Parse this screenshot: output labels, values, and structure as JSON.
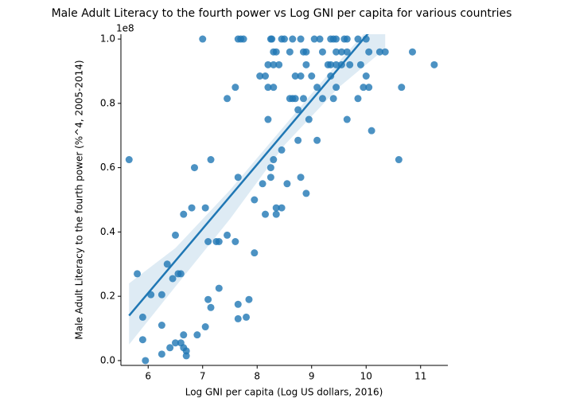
{
  "chart_data": {
    "type": "scatter",
    "title": "Male Adult Literacy to the fourth power vs Log GNI per capita for various countries",
    "x_label": "Log GNI per capita (Log US dollars, 2016)",
    "y_label": "Male Adult Literacy to the fourth power (%^4, 2005-2014)",
    "y_offset_label": "1e8",
    "xlim": [
      5.5,
      11.5
    ],
    "ylim": [
      -0.015,
      1.015
    ],
    "xticks": [
      6,
      7,
      8,
      9,
      10,
      11
    ],
    "yticks": [
      {
        "value": 0,
        "label": "0.0"
      },
      {
        "value": 0.2,
        "label": "0.2"
      },
      {
        "value": 0.4,
        "label": "0.4"
      },
      {
        "value": 0.6,
        "label": "0.6"
      },
      {
        "value": 0.8,
        "label": "0.8"
      },
      {
        "value": 1.0,
        "label": "1.0"
      }
    ],
    "color": "#1f77b4",
    "x": [
      7.0,
      7.65,
      7.7,
      7.75,
      8.25,
      8.27,
      8.45,
      8.5,
      8.65,
      8.8,
      9.05,
      9.15,
      9.35,
      9.4,
      9.45,
      9.6,
      9.65,
      9.85,
      10.0,
      8.3,
      8.35,
      8.6,
      8.85,
      8.9,
      9.2,
      9.45,
      9.55,
      9.65,
      10.05,
      10.25,
      10.35,
      10.85,
      8.2,
      8.3,
      8.4,
      9.3,
      9.35,
      9.45,
      9.55,
      9.7,
      9.9,
      11.25,
      8.9,
      8.05,
      8.15,
      8.7,
      8.8,
      9.0,
      9.35,
      10.0,
      7.6,
      8.2,
      8.3,
      9.1,
      9.45,
      9.95,
      10.05,
      10.65,
      7.45,
      8.6,
      8.65,
      8.7,
      8.85,
      9.2,
      9.4,
      9.85,
      8.75,
      8.2,
      8.95,
      9.65,
      10.1,
      8.75,
      9.1,
      8.45,
      5.65,
      7.15,
      8.3,
      10.6,
      6.85,
      8.25,
      7.65,
      8.25,
      8.8,
      8.1,
      8.55,
      8.9,
      7.95,
      6.8,
      7.05,
      8.35,
      8.45,
      6.65,
      8.15,
      8.35,
      6.5,
      7.45,
      7.1,
      7.25,
      7.3,
      7.6,
      7.95,
      6.35,
      5.8,
      6.55,
      6.6,
      6.45,
      7.3,
      6.05,
      6.25,
      7.1,
      7.85,
      7.65,
      7.15,
      5.9,
      7.8,
      7.65,
      6.25,
      7.05,
      6.65,
      6.9,
      5.9,
      6.5,
      6.6,
      6.4,
      6.65,
      6.7,
      6.25,
      6.7,
      5.95
    ],
    "values": [
      1.0,
      1.0,
      1.0,
      1.0,
      1.0,
      1.0,
      1.0,
      1.0,
      1.0,
      1.0,
      1.0,
      1.0,
      1.0,
      1.0,
      1.0,
      1.0,
      1.0,
      1.0,
      1.0,
      0.96,
      0.96,
      0.96,
      0.96,
      0.96,
      0.96,
      0.96,
      0.96,
      0.96,
      0.96,
      0.96,
      0.96,
      0.96,
      0.92,
      0.92,
      0.92,
      0.92,
      0.92,
      0.92,
      0.92,
      0.92,
      0.92,
      0.92,
      0.92,
      0.885,
      0.885,
      0.885,
      0.885,
      0.885,
      0.885,
      0.885,
      0.85,
      0.85,
      0.85,
      0.85,
      0.85,
      0.85,
      0.85,
      0.85,
      0.815,
      0.815,
      0.815,
      0.815,
      0.815,
      0.815,
      0.815,
      0.815,
      0.78,
      0.75,
      0.75,
      0.75,
      0.715,
      0.685,
      0.685,
      0.655,
      0.625,
      0.625,
      0.625,
      0.625,
      0.6,
      0.6,
      0.57,
      0.57,
      0.57,
      0.55,
      0.55,
      0.52,
      0.5,
      0.475,
      0.475,
      0.475,
      0.475,
      0.455,
      0.455,
      0.455,
      0.39,
      0.39,
      0.37,
      0.37,
      0.37,
      0.37,
      0.335,
      0.3,
      0.27,
      0.27,
      0.27,
      0.255,
      0.225,
      0.205,
      0.205,
      0.19,
      0.19,
      0.175,
      0.165,
      0.135,
      0.135,
      0.13,
      0.11,
      0.105,
      0.08,
      0.08,
      0.065,
      0.055,
      0.055,
      0.04,
      0.04,
      0.03,
      0.02,
      0.015,
      0.0
    ],
    "fit": {
      "x": [
        5.65,
        10.35
      ],
      "y": [
        0.14,
        1.08
      ]
    },
    "band": {
      "x": [
        5.65,
        6.5,
        7.5,
        8.5,
        9.5,
        10.35
      ],
      "lower": [
        0.05,
        0.23,
        0.44,
        0.67,
        0.85,
        0.97
      ],
      "upper": [
        0.24,
        0.35,
        0.53,
        0.73,
        0.93,
        1.09
      ]
    }
  }
}
